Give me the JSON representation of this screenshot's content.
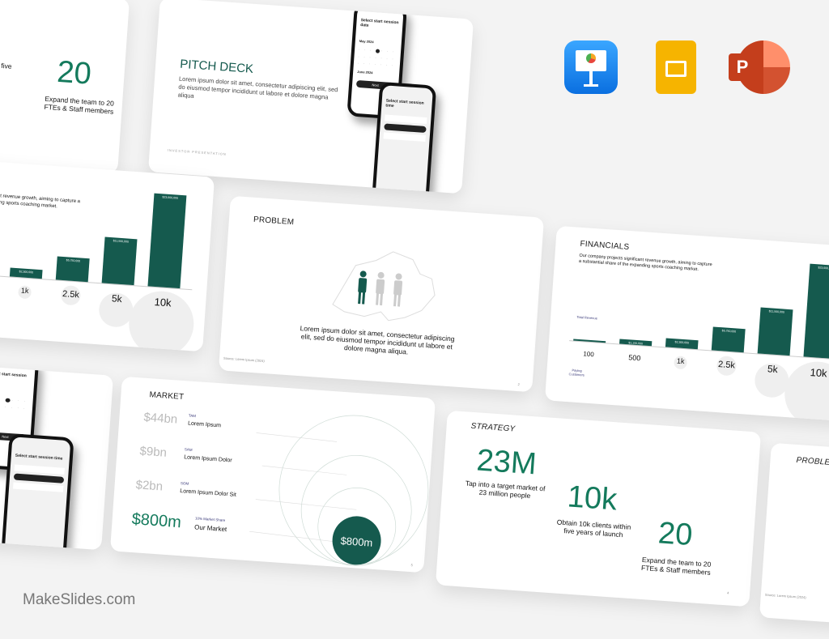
{
  "brand": {
    "footer": "MakeSlides.com"
  },
  "apps": [
    {
      "name": "Keynote",
      "color": "#1a8cf0"
    },
    {
      "name": "Google Slides",
      "color": "#f6b400"
    },
    {
      "name": "PowerPoint",
      "color": "#d24726"
    }
  ],
  "colors": {
    "accent": "#147a5c",
    "bar": "#155a4e",
    "background": "#f3f3f3"
  },
  "strategy": {
    "title": "STRATEGY",
    "page": "4",
    "stats": [
      {
        "value": "23M",
        "desc": "Tap into a target market of 23 million people"
      },
      {
        "value": "10k",
        "desc": "Obtain 10k clients within five years of launch"
      },
      {
        "value": "20",
        "desc": "Expand the team to 20 FTEs & Staff members"
      }
    ]
  },
  "pitch": {
    "title": "PITCH DECK",
    "body": "Lorem ipsum dolor sit amet, consectetur adipiscing elit, sed do eiusmod tempor incididunt ut labore et dolore magna aliqua",
    "footer": "INVESTOR PRESENTATION"
  },
  "phone": {
    "date_title": "Select start session date",
    "month1": "May 2024",
    "month2": "June 2024",
    "next": "Next",
    "time_title": "Select start session time"
  },
  "problem": {
    "title": "PROBLEM",
    "body": "Lorem ipsum dolor sit amet, consectetur adipiscing elit, sed do eiusmod tempor incididunt ut labore et dolore magna aliqua.",
    "source": "Source: Lorem Ipsum (2024)",
    "page": "2"
  },
  "financials": {
    "title": "FINANCIALS",
    "body": "Our company projects significant revenue growth, aiming to capture a substantial share of the expanding sports coaching market.",
    "y_label": "Total Revenue",
    "x_label": "Paying Customers",
    "chart_data": {
      "type": "bar",
      "categories": [
        "100",
        "500",
        "1k",
        "2.5k",
        "5k",
        "10k"
      ],
      "values": [
        230000,
        1150000,
        2300000,
        5750000,
        11500000,
        23000000
      ],
      "labels": [
        "",
        "$1,150,000",
        "$2,300,000",
        "$5,750,000",
        "$11,500,000",
        "$23,000,000"
      ]
    }
  },
  "market": {
    "title": "MARKET",
    "page": "5",
    "rows": [
      {
        "value": "$44bn",
        "tag": "TAM",
        "label": "Lorem Ipsum"
      },
      {
        "value": "$9bn",
        "tag": "SAM",
        "label": "Lorem Ipsum Dolor"
      },
      {
        "value": "$2bn",
        "tag": "SOM",
        "label": "Lorem Ipsum Dolor Sit"
      },
      {
        "value": "$800m",
        "tag": "10% Market Share",
        "label": "Our Market"
      }
    ],
    "circle_value": "$800m"
  }
}
